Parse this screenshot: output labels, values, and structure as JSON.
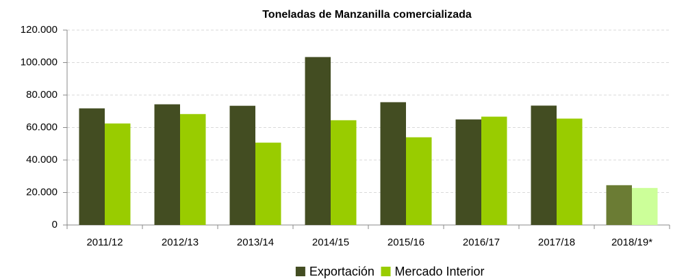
{
  "chart_data": {
    "type": "bar",
    "title": "Toneladas de Manzanilla comercializada",
    "categories": [
      "2011/12",
      "2012/13",
      "2013/14",
      "2014/15",
      "2015/16",
      "2016/17",
      "2017/18",
      "2018/19*"
    ],
    "series": [
      {
        "name": "Exportación",
        "color": "#434d22",
        "colors": [
          "#434d22",
          "#434d22",
          "#434d22",
          "#434d22",
          "#434d22",
          "#434d22",
          "#434d22",
          "#6b7c34"
        ],
        "values": [
          71800,
          74300,
          73400,
          103400,
          75600,
          65000,
          73500,
          24500
        ]
      },
      {
        "name": "Mercado Interior",
        "color": "#99cc00",
        "colors": [
          "#99cc00",
          "#99cc00",
          "#99cc00",
          "#99cc00",
          "#99cc00",
          "#99cc00",
          "#99cc00",
          "#ccff99"
        ],
        "values": [
          62500,
          68300,
          50700,
          64500,
          54000,
          66700,
          65500,
          22800
        ]
      }
    ],
    "ylim": [
      0,
      120000
    ],
    "yticks": [
      0,
      {
        "value": 20000,
        "label": "20.000"
      },
      {
        "value": 40000,
        "label": "40.000"
      },
      {
        "value": 60000,
        "label": "60.000"
      },
      {
        "value": 80000,
        "label": "80.000"
      },
      {
        "value": 100000,
        "label": "100.000"
      },
      {
        "value": 120000,
        "label": "120.000"
      }
    ],
    "grid": true,
    "legend": "bottom"
  }
}
